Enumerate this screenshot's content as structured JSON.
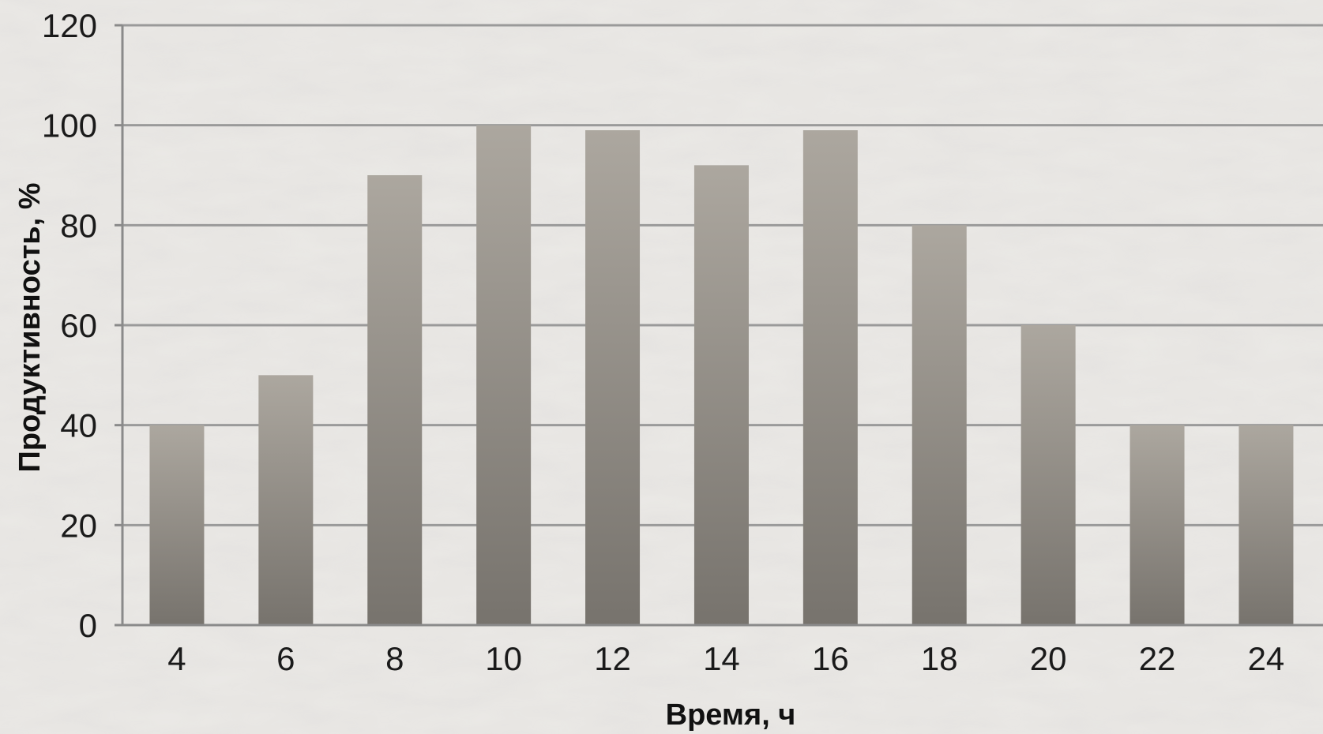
{
  "chart_data": {
    "type": "bar",
    "title": "",
    "xlabel": "Время, ч",
    "ylabel": "Продуктивность, %",
    "categories": [
      "4",
      "6",
      "8",
      "10",
      "12",
      "14",
      "16",
      "18",
      "20",
      "22",
      "24"
    ],
    "values": [
      40,
      50,
      90,
      100,
      99,
      92,
      99,
      80,
      60,
      40,
      40
    ],
    "ylim": [
      0,
      120
    ],
    "yticks": [
      "0",
      "20",
      "40",
      "60",
      "80",
      "100",
      "120"
    ],
    "grid": true,
    "legend": "none",
    "colors": {
      "background": "#ebe9e6",
      "bar_top": "#aca79f",
      "bar_bottom": "#77736d",
      "grid": "#9a9a9a",
      "axis": "#8a8a8a"
    }
  }
}
